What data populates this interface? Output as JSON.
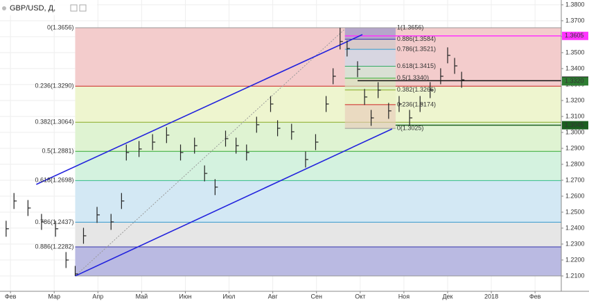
{
  "chart_data": {
    "type": "hlc",
    "title": "GBP/USD, Д,",
    "color": "#222222",
    "x": [
      -0.1,
      0.08,
      0.4,
      0.71,
      1.03,
      1.27,
      1.48,
      1.67,
      1.98,
      2.3,
      2.54,
      2.65,
      2.94,
      3.25,
      3.57,
      3.89,
      4.21,
      4.44,
      4.68,
      4.92,
      5.16,
      5.4,
      5.63,
      5.95,
      6.11,
      6.43,
      6.75,
      6.98,
      7.22,
      7.38,
      7.54,
      7.7,
      7.94,
      8.1,
      8.25,
      8.41,
      8.65,
      8.89,
      9.13,
      9.37,
      9.6,
      9.84,
      10.0,
      10.16,
      10.32
    ],
    "high": [
      1.2446,
      1.262,
      1.2576,
      1.2489,
      1.2446,
      1.225,
      1.2163,
      1.2402,
      1.2533,
      1.2489,
      1.262,
      1.2924,
      1.2946,
      1.2989,
      1.3033,
      1.2924,
      1.2967,
      1.2793,
      1.2707,
      1.3011,
      1.2967,
      1.2924,
      1.3098,
      1.3228,
      1.3076,
      1.3054,
      1.288,
      1.2989,
      1.3228,
      1.3402,
      1.3656,
      1.3576,
      1.3446,
      1.3272,
      1.3141,
      1.3315,
      1.3185,
      1.3228,
      1.3141,
      1.3228,
      1.3315,
      1.3402,
      1.3533,
      1.3467,
      1.338
    ],
    "low": [
      1.2346,
      1.252,
      1.2476,
      1.2389,
      1.2346,
      1.215,
      1.21,
      1.2302,
      1.2433,
      1.2389,
      1.252,
      1.2824,
      1.2846,
      1.2889,
      1.2933,
      1.2824,
      1.2867,
      1.2693,
      1.2607,
      1.2911,
      1.2867,
      1.2824,
      1.2998,
      1.3128,
      1.2976,
      1.2954,
      1.278,
      1.2889,
      1.3128,
      1.3302,
      1.352,
      1.3476,
      1.3346,
      1.3172,
      1.3041,
      1.3215,
      1.3085,
      1.3128,
      1.3041,
      1.3128,
      1.3215,
      1.3302,
      1.3433,
      1.3367,
      1.328
    ],
    "close": [
      1.2396,
      1.257,
      1.2526,
      1.2439,
      1.2396,
      1.22,
      1.2113,
      1.2352,
      1.2483,
      1.2439,
      1.257,
      1.2874,
      1.2896,
      1.2939,
      1.2983,
      1.2874,
      1.2917,
      1.2743,
      1.2657,
      1.2961,
      1.2917,
      1.2874,
      1.3048,
      1.3178,
      1.3026,
      1.3004,
      1.283,
      1.2939,
      1.3178,
      1.3352,
      1.357,
      1.3526,
      1.3396,
      1.3222,
      1.3091,
      1.3265,
      1.3135,
      1.3178,
      1.3091,
      1.3178,
      1.3265,
      1.3352,
      1.3483,
      1.3417,
      1.333
    ],
    "xlim": [
      -0.24,
      12.6
    ],
    "ylim": [
      1.2004,
      1.383
    ],
    "xticks": [
      {
        "value": 0,
        "label": "Фев"
      },
      {
        "value": 1,
        "label": "Мар"
      },
      {
        "value": 2,
        "label": "Апр"
      },
      {
        "value": 3,
        "label": "Май"
      },
      {
        "value": 4,
        "label": "Июн"
      },
      {
        "value": 5,
        "label": "Июл"
      },
      {
        "value": 6,
        "label": "Авг"
      },
      {
        "value": 7,
        "label": "Сен"
      },
      {
        "value": 8,
        "label": "Окт"
      },
      {
        "value": 9,
        "label": "Ноя"
      },
      {
        "value": 10,
        "label": "Дек"
      },
      {
        "value": 11,
        "label": "2018"
      },
      {
        "value": 12,
        "label": "Фев"
      }
    ],
    "yticks": [
      {
        "value": 1.21,
        "label": "1.2100"
      },
      {
        "value": 1.22,
        "label": "1.2200"
      },
      {
        "value": 1.23,
        "label": "1.2300"
      },
      {
        "value": 1.24,
        "label": "1.2400"
      },
      {
        "value": 1.25,
        "label": "1.2500"
      },
      {
        "value": 1.26,
        "label": "1.2600"
      },
      {
        "value": 1.27,
        "label": "1.2700"
      },
      {
        "value": 1.28,
        "label": "1.2800"
      },
      {
        "value": 1.29,
        "label": "1.2900"
      },
      {
        "value": 1.3,
        "label": "1.3000"
      },
      {
        "value": 1.31,
        "label": "1.3100"
      },
      {
        "value": 1.32,
        "label": "1.3200"
      },
      {
        "value": 1.33,
        "label": "1.3300"
      },
      {
        "value": 1.34,
        "label": "1.3400"
      },
      {
        "value": 1.35,
        "label": "1.3500"
      },
      {
        "value": 1.36,
        "label": "1.3600"
      },
      {
        "value": 1.37,
        "label": "1.3700"
      },
      {
        "value": 1.38,
        "label": "1.3800"
      }
    ],
    "grid": true,
    "fib_left": {
      "x_start": 1.48,
      "low": 1.21,
      "levels": [
        {
          "label": "0(1.3656)",
          "value": 1.3656,
          "color": "#f3cccc",
          "line": "#999999"
        },
        {
          "label": "0.236(1.3290)",
          "value": 1.329,
          "color": "#eef5cf",
          "line": "#cc2222"
        },
        {
          "label": "0.382(1.3064)",
          "value": 1.3064,
          "color": "#dff3d2",
          "line": "#88aa22"
        },
        {
          "label": "0.5(1.2881)",
          "value": 1.2881,
          "color": "#d4f2df",
          "line": "#33aa33"
        },
        {
          "label": "0.618(1.2698)",
          "value": 1.2698,
          "color": "#d3e8f4",
          "line": "#33bb88"
        },
        {
          "label": "0.786(1.2437)",
          "value": 1.2437,
          "color": "#e6e6e6",
          "line": "#3399cc"
        },
        {
          "label": "0.886(1.2282)",
          "value": 1.2282,
          "color": "#babae2",
          "line": "#3333aa"
        }
      ]
    },
    "fib_right": {
      "x": [
        7.65,
        8.81
      ],
      "low": 1.3025,
      "levels": [
        {
          "label": "1(1.3656)",
          "value": 1.3656,
          "color": "#8c8cc8",
          "line": "#999999"
        },
        {
          "label": "0.886(1.3584)",
          "value": 1.3584,
          "color": "#c8c8c8",
          "line": "#3333aa"
        },
        {
          "label": "0.786(1.3521)",
          "value": 1.3521,
          "color": "#c4dcee",
          "line": "#3399cc"
        },
        {
          "label": "0.618(1.3415)",
          "value": 1.3415,
          "color": "#c8ecd8",
          "line": "#33aa66"
        },
        {
          "label": "0.5(1.3340)",
          "value": 1.334,
          "color": "#d2ecc0",
          "line": "#33aa33"
        },
        {
          "label": "0.382(1.3266)",
          "value": 1.3266,
          "color": "#eaf0c0",
          "line": "#88aa22"
        },
        {
          "label": "0.236(1.3174)",
          "value": 1.3174,
          "color": "#e8c8b8",
          "line": "#cc2222"
        },
        {
          "label": "0(1.3025)",
          "value": 1.3025,
          "color": "#e8c8b8",
          "line": "#999999"
        }
      ]
    },
    "trendlines": [
      {
        "color": "#2222dd",
        "x": [
          0.59,
          8.05
        ],
        "y": [
          1.2674,
          1.3613
        ]
      },
      {
        "color": "#2222dd",
        "x": [
          1.48,
          8.73
        ],
        "y": [
          1.21,
          1.3022
        ]
      }
    ],
    "dotted_line": {
      "color": "#999999",
      "x": [
        1.48,
        7.65
      ],
      "y": [
        1.21,
        1.3648
      ]
    },
    "price_lines": [
      {
        "value": 1.3605,
        "label": "1.3605",
        "color": "#ff33ff",
        "x_start": 7.65
      },
      {
        "value": 1.3324,
        "label": "1.3324",
        "color": "#111111",
        "x_start": 7.94
      },
      {
        "value": 1.332,
        "label": "1.3320",
        "color": "#2e7d32",
        "x_start": 12.6
      },
      {
        "value": 1.3045,
        "label": "1.3045",
        "color": "#1b5e20",
        "x_start": 8.81
      }
    ]
  }
}
